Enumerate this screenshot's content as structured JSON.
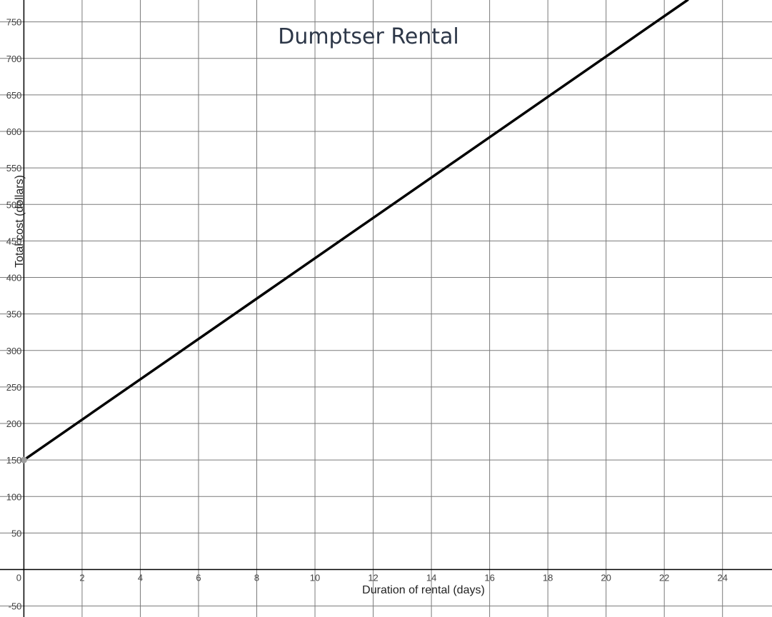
{
  "chart_data": {
    "type": "line",
    "title": "Dumptser Rental",
    "xlabel": "Duration of rental (days)",
    "ylabel": "Total cost (dollars)",
    "xlim": [
      -0.82,
      25.7
    ],
    "ylim": [
      -65,
      780
    ],
    "x_ticks": [
      "0",
      "2",
      "4",
      "6",
      "8",
      "10",
      "12",
      "14",
      "16",
      "18",
      "20",
      "22",
      "24"
    ],
    "y_ticks": [
      "-50",
      "50",
      "100",
      "150",
      "200",
      "250",
      "300",
      "350",
      "400",
      "450",
      "500",
      "550",
      "600",
      "650",
      "700",
      "750"
    ],
    "grid": true,
    "series": [
      {
        "color": "#000000",
        "x": [
          0,
          22.8
        ],
        "y": [
          150,
          780
        ]
      }
    ],
    "points": [
      {
        "x": 0,
        "y": 150,
        "color": "#9e9e9e"
      }
    ]
  }
}
